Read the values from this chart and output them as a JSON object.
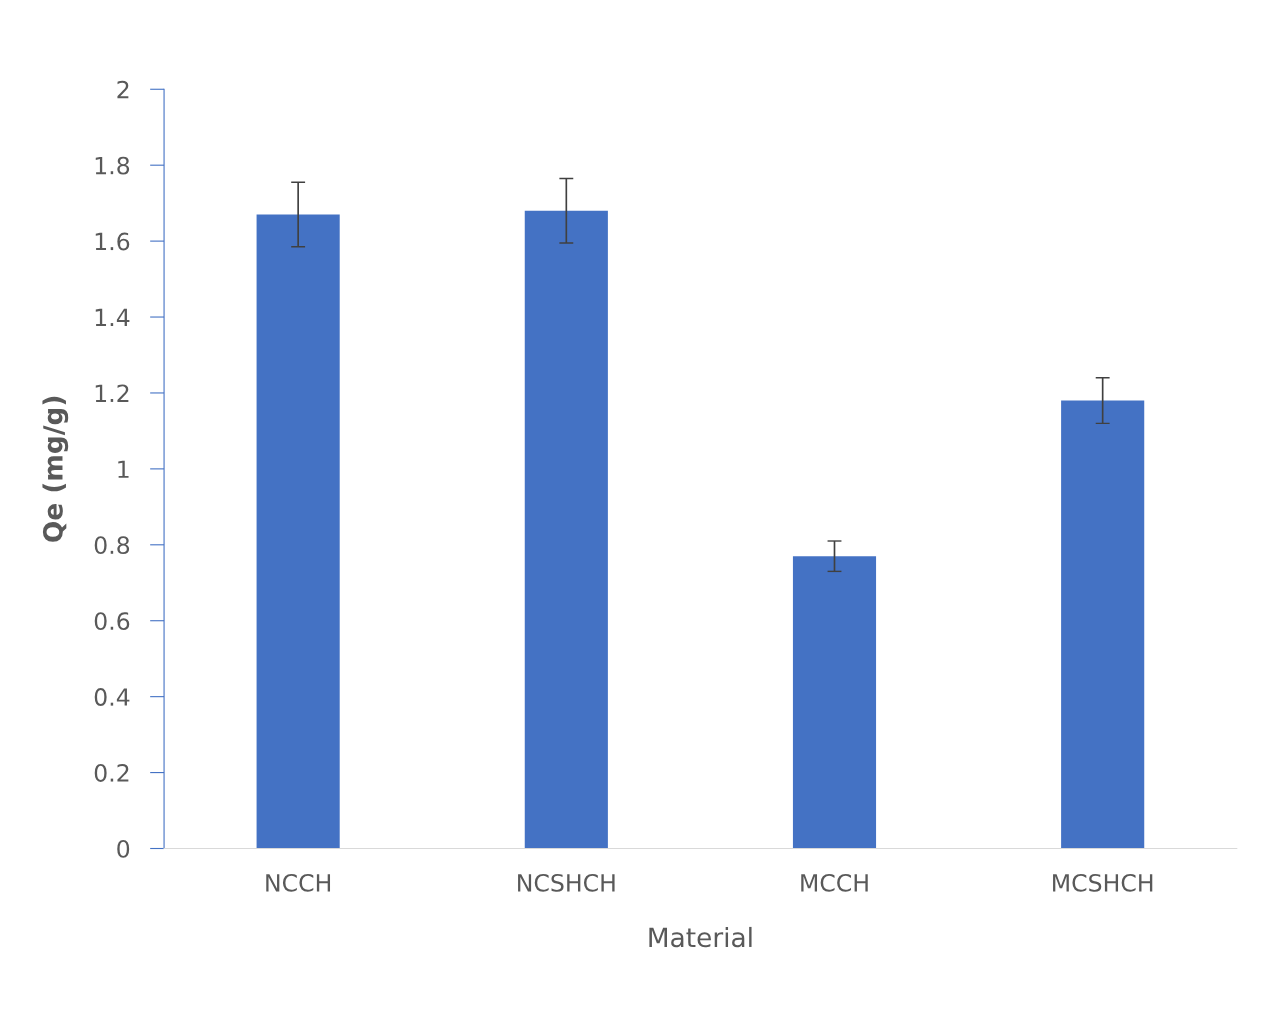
{
  "chart_data": {
    "type": "bar",
    "xlabel": "Material",
    "ylabel": "Qe (mg/g)",
    "categories": [
      "NCCH",
      "NCSHCH",
      "MCCH",
      "MCSHCH"
    ],
    "values": [
      1.67,
      1.68,
      0.77,
      1.18
    ],
    "errors": [
      0.085,
      0.085,
      0.04,
      0.06
    ],
    "color": "#4472c4",
    "ylim": [
      0,
      2
    ],
    "yticks": [
      0,
      0.2,
      0.4,
      0.6,
      0.8,
      1,
      1.2,
      1.4,
      1.6,
      1.8,
      2
    ],
    "grid": false,
    "legend": false
  }
}
